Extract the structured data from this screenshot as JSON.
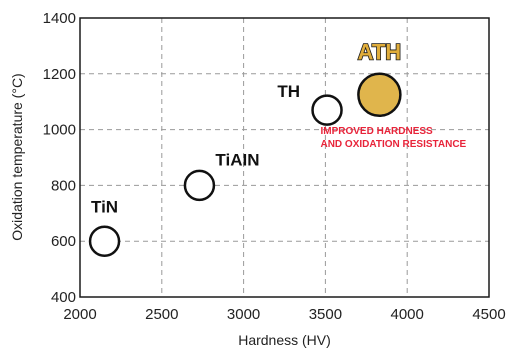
{
  "chart_data": {
    "type": "scatter",
    "xlabel": "Hardness (HV)",
    "ylabel": "Oxidation temperature (°C)",
    "xlim": [
      2000,
      4500
    ],
    "ylim": [
      400,
      1400
    ],
    "xticks": [
      2000,
      2500,
      3000,
      3500,
      4000,
      4500
    ],
    "yticks": [
      400,
      600,
      800,
      1000,
      1200,
      1400
    ],
    "grid": true,
    "points": [
      {
        "label": "TiN",
        "x": 2150,
        "y": 600,
        "highlight": false,
        "color": "#ffffff",
        "label_position": "above"
      },
      {
        "label": "TiAIN",
        "x": 2730,
        "y": 800,
        "highlight": false,
        "color": "#ffffff",
        "label_position": "upper-right"
      },
      {
        "label": "TH",
        "x": 3510,
        "y": 1070,
        "highlight": false,
        "color": "#ffffff",
        "label_position": "upper-left"
      },
      {
        "label": "ATH",
        "x": 3830,
        "y": 1125,
        "highlight": true,
        "color": "#e0b54c",
        "label_position": "above"
      }
    ],
    "annotation": {
      "lines": [
        "IMPROVED HARDNESS",
        "AND OXIDATION RESISTANCE"
      ],
      "color": "#e8243a",
      "x": 3470,
      "y": 985
    }
  }
}
